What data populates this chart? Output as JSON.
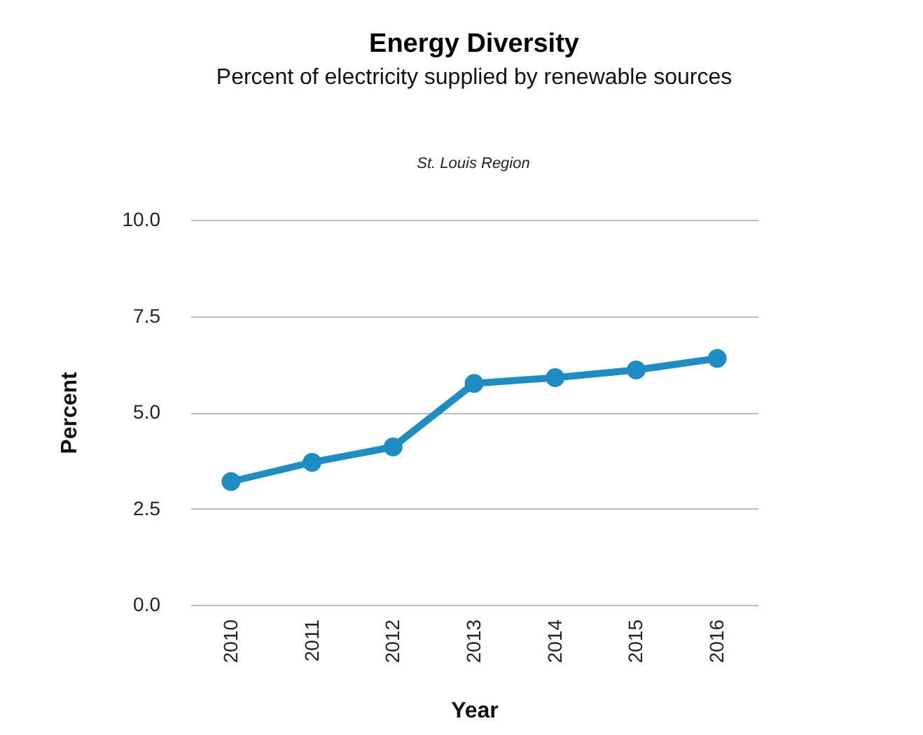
{
  "chart_data": {
    "type": "line",
    "title": "Energy Diversity",
    "subtitle": "Percent of electricity supplied by renewable sources",
    "annotations": [
      "St. Louis Region"
    ],
    "xlabel": "Year",
    "ylabel": "Percent",
    "categories": [
      "2010",
      "2011",
      "2012",
      "2013",
      "2014",
      "2015",
      "2016"
    ],
    "series": [
      {
        "color": "#1f8dc2",
        "values": [
          3.2,
          3.7,
          4.1,
          5.75,
          5.9,
          6.1,
          6.4
        ]
      }
    ],
    "ylim": [
      0,
      10
    ],
    "yticks": [
      {
        "value": 0,
        "label": "0.0"
      },
      {
        "value": 2.5,
        "label": "2.5"
      },
      {
        "value": 5,
        "label": "5.0"
      },
      {
        "value": 7.5,
        "label": "7.5"
      },
      {
        "value": 10,
        "label": "10.0"
      }
    ],
    "grid": "y",
    "marker": "circle",
    "line_style": "solid",
    "legend": false
  }
}
